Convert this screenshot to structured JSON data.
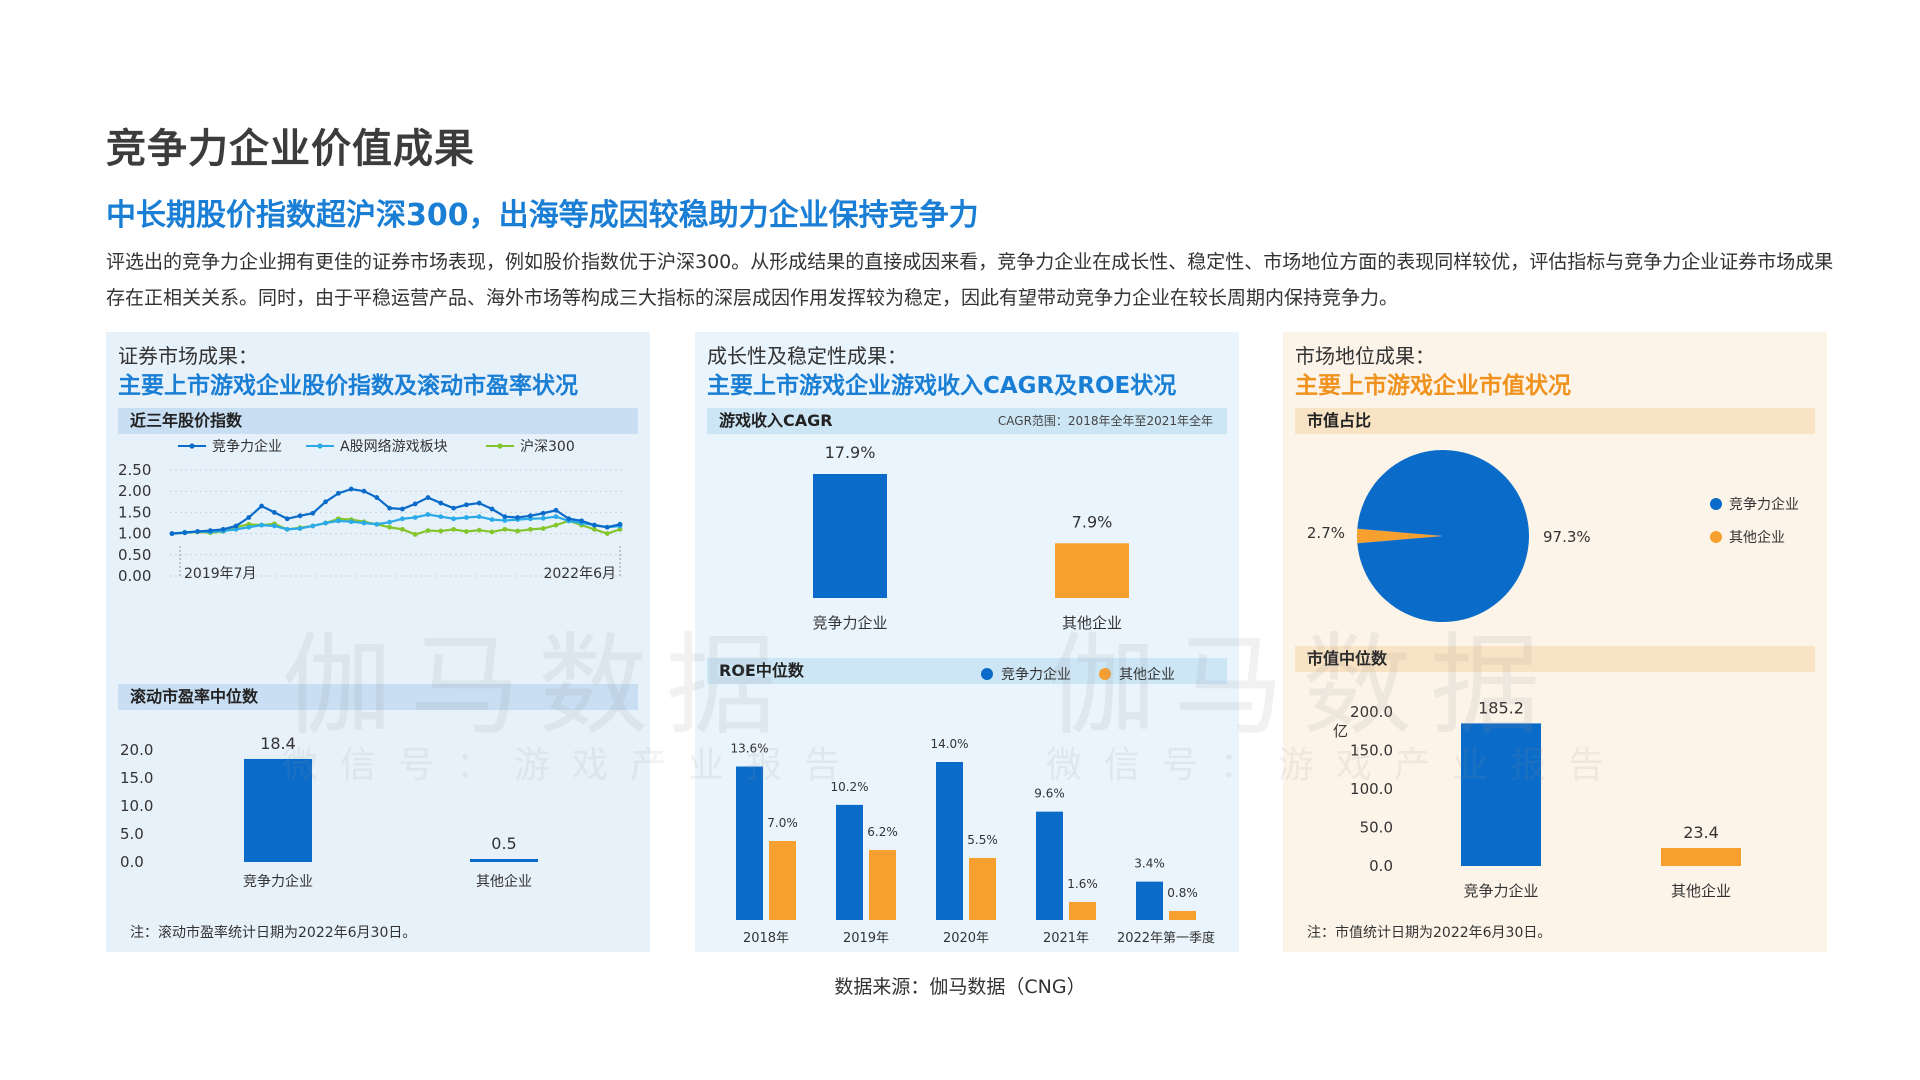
{
  "page": {
    "title": "竞争力企业价值成果",
    "subtitle": "中长期股价指数超沪深300，出海等成因较稳助力企业保持竞争力",
    "intro": "评选出的竞争力企业拥有更佳的证券市场表现，例如股价指数优于沪深300。从形成结果的直接成因来看，竞争力企业在成长性、稳定性、市场地位方面的表现同样较优，评估指标与竞争力企业证券市场成果存在正相关关系。同时，由于平稳运营产品、海外市场等构成三大指标的深层成因作用发挥较为稳定，因此有望带动竞争力企业在较长周期内保持竞争力。",
    "source": "数据来源：伽马数据（CNG）",
    "watermark_big": "伽马数据",
    "watermark_small": "微信号：游戏产业报告"
  },
  "panels": {
    "securities": {
      "label": "证券市场成果：",
      "title": "主要上市游戏企业股价指数及滚动市盈率状况",
      "chart1_header": "近三年股价指数",
      "chart2_header": "滚动市盈率中位数",
      "footnote": "注：滚动市盈率统计日期为2022年6月30日。"
    },
    "growth": {
      "label": "成长性及稳定性成果：",
      "title": "主要上市游戏企业游戏收入CAGR及ROE状况",
      "chart1_header": "游戏收入CAGR",
      "chart1_note": "CAGR范围：2018年全年至2021年全年",
      "chart2_header": "ROE中位数"
    },
    "market": {
      "label": "市场地位成果：",
      "title": "主要上市游戏企业市值状况",
      "chart1_header": "市值占比",
      "chart2_header": "市值中位数",
      "unit": "亿",
      "footnote": "注：市值统计日期为2022年6月30日。"
    }
  },
  "colors": {
    "blue": "#0a6bc9",
    "lightblue": "#2aaae8",
    "green": "#84c52b",
    "orange": "#f7a030"
  },
  "chart_data": [
    {
      "type": "line",
      "title": "近三年股价指数",
      "x_start_label": "2019年7月",
      "x_end_label": "2022年6月",
      "ylim": [
        0,
        2.5
      ],
      "yticks": [
        "2.50",
        "2.00",
        "1.50",
        "1.00",
        "0.50",
        "0.00"
      ],
      "series": [
        {
          "name": "竞争力企业",
          "color": "#0a6bc9",
          "values": [
            1.0,
            1.02,
            1.05,
            1.07,
            1.1,
            1.18,
            1.38,
            1.65,
            1.5,
            1.35,
            1.42,
            1.48,
            1.75,
            1.95,
            2.05,
            2.0,
            1.85,
            1.6,
            1.58,
            1.7,
            1.85,
            1.72,
            1.6,
            1.68,
            1.72,
            1.58,
            1.4,
            1.38,
            1.42,
            1.48,
            1.55,
            1.35,
            1.3,
            1.2,
            1.15,
            1.22
          ]
        },
        {
          "name": "A股网络游戏板块",
          "color": "#2aaae8",
          "values": [
            1.0,
            1.03,
            1.05,
            1.04,
            1.06,
            1.1,
            1.15,
            1.2,
            1.18,
            1.1,
            1.12,
            1.18,
            1.25,
            1.3,
            1.28,
            1.25,
            1.22,
            1.27,
            1.35,
            1.38,
            1.45,
            1.4,
            1.35,
            1.38,
            1.4,
            1.33,
            1.31,
            1.33,
            1.35,
            1.36,
            1.4,
            1.3,
            1.25,
            1.2,
            1.15,
            1.18
          ]
        },
        {
          "name": "沪深300",
          "color": "#84c52b",
          "values": [
            1.0,
            1.02,
            1.04,
            1.02,
            1.05,
            1.15,
            1.22,
            1.2,
            1.23,
            1.1,
            1.14,
            1.18,
            1.25,
            1.35,
            1.33,
            1.28,
            1.22,
            1.15,
            1.1,
            0.98,
            1.07,
            1.06,
            1.1,
            1.05,
            1.08,
            1.04,
            1.1,
            1.06,
            1.1,
            1.12,
            1.2,
            1.3,
            1.2,
            1.1,
            1.0,
            1.1
          ]
        }
      ]
    },
    {
      "type": "bar",
      "title": "滚动市盈率中位数",
      "categories": [
        "竞争力企业",
        "其他企业"
      ],
      "values": [
        18.4,
        0.5
      ],
      "ylim": [
        0,
        20
      ],
      "yticks": [
        "20.0",
        "15.0",
        "10.0",
        "5.0",
        "0.0"
      ]
    },
    {
      "type": "bar",
      "title": "游戏收入CAGR",
      "categories": [
        "竞争力企业",
        "其他企业"
      ],
      "values": [
        17.9,
        7.9
      ],
      "labels": [
        "17.9%",
        "7.9%"
      ]
    },
    {
      "type": "bar",
      "title": "ROE中位数",
      "categories": [
        "2018年",
        "2019年",
        "2020年",
        "2021年",
        "2022年第一季度"
      ],
      "series": [
        {
          "name": "竞争力企业",
          "values": [
            13.6,
            10.2,
            14.0,
            9.6,
            3.4
          ],
          "labels": [
            "13.6%",
            "10.2%",
            "14.0%",
            "9.6%",
            "3.4%"
          ]
        },
        {
          "name": "其他企业",
          "values": [
            7.0,
            6.2,
            5.5,
            1.6,
            0.8
          ],
          "labels": [
            "7.0%",
            "6.2%",
            "5.5%",
            "1.6%",
            "0.8%"
          ]
        }
      ]
    },
    {
      "type": "pie",
      "title": "市值占比",
      "categories": [
        "竞争力企业",
        "其他企业"
      ],
      "values": [
        97.3,
        2.7
      ],
      "labels": [
        "97.3%",
        "2.7%"
      ]
    },
    {
      "type": "bar",
      "title": "市值中位数",
      "categories": [
        "竞争力企业",
        "其他企业"
      ],
      "values": [
        185.2,
        23.4
      ],
      "ylim": [
        0,
        200
      ],
      "yticks": [
        "200.0",
        "150.0",
        "100.0",
        "50.0",
        "0.0"
      ]
    }
  ]
}
